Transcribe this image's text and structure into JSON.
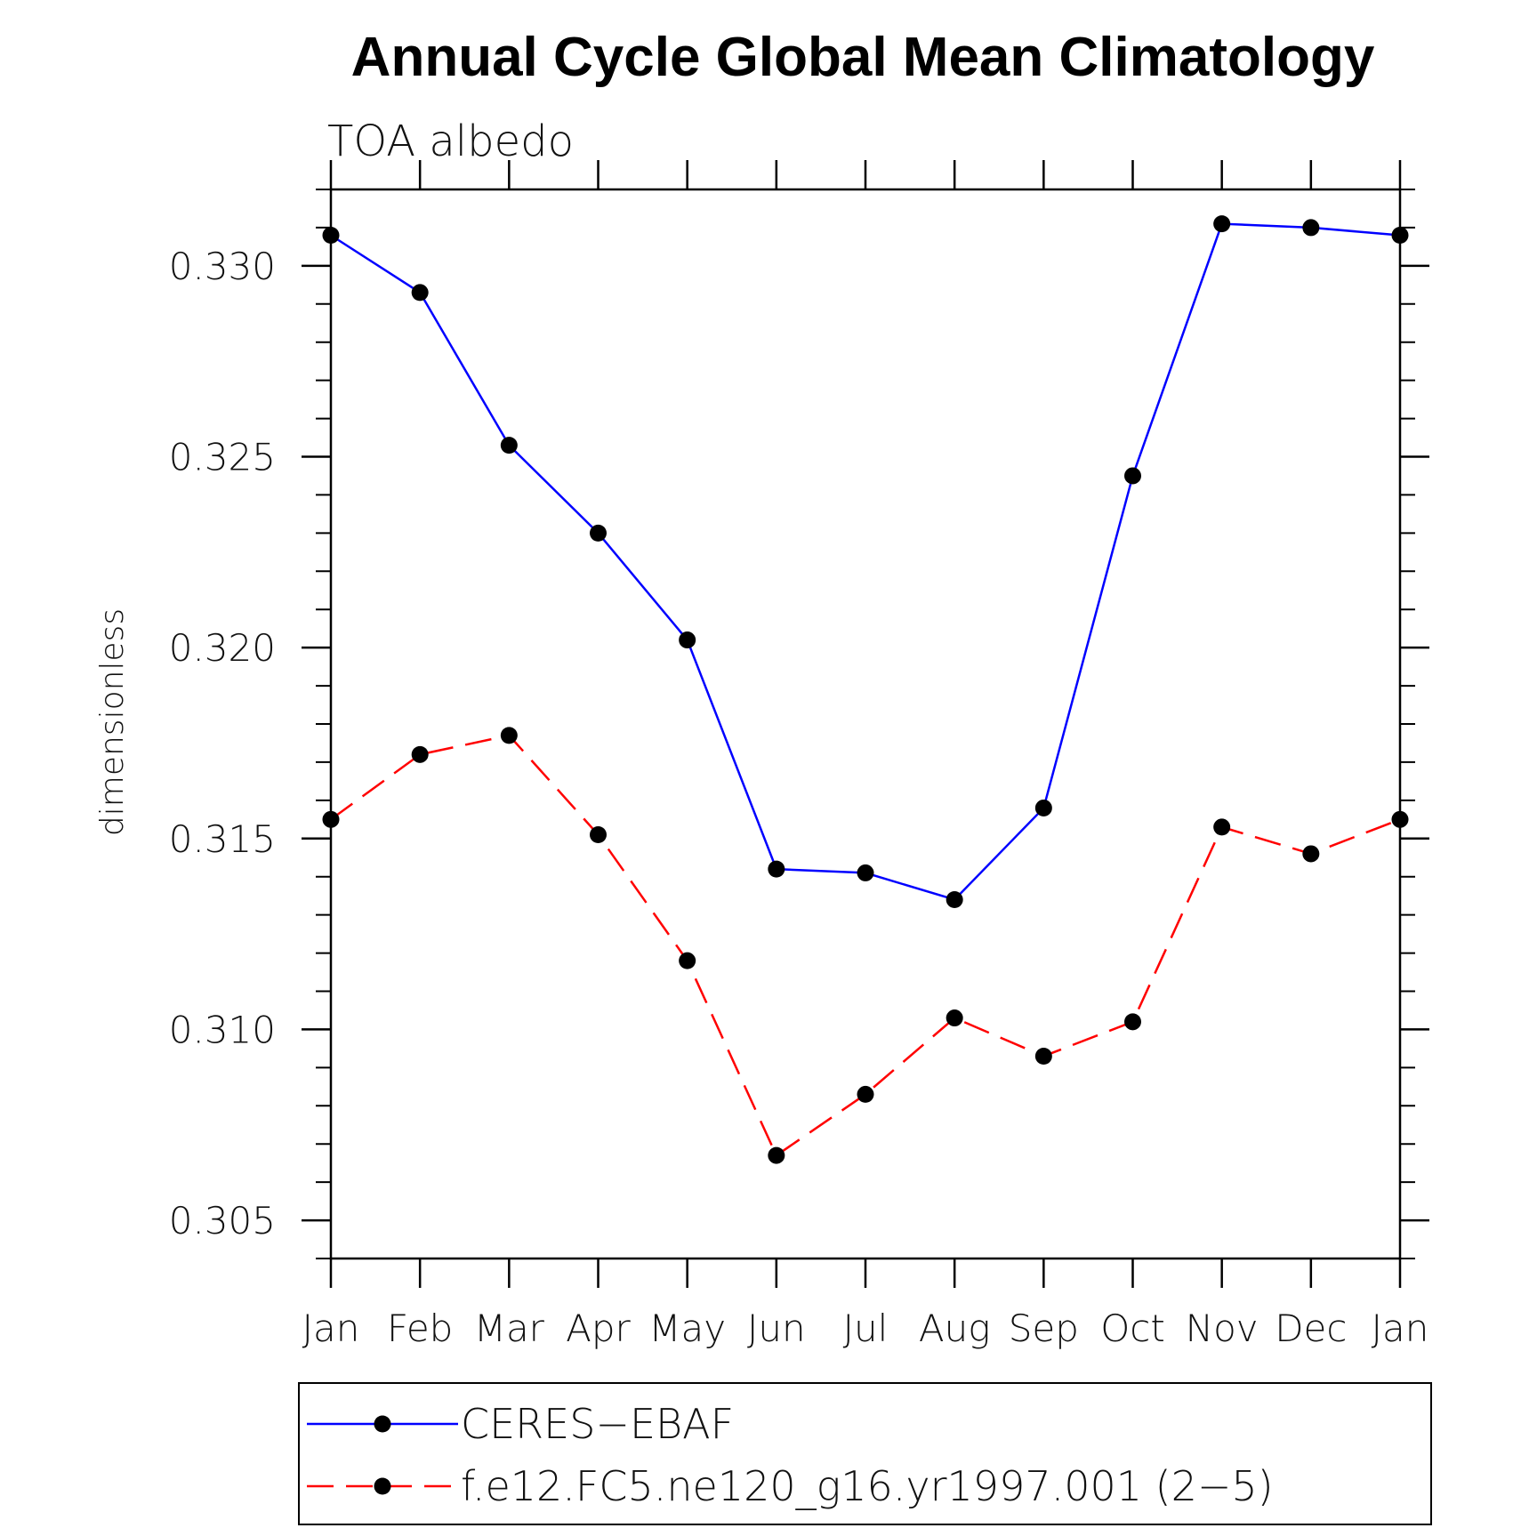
{
  "chart_data": {
    "type": "line",
    "title": "Annual Cycle Global Mean Climatology",
    "subtitle": "TOA albedo",
    "xlabel": "",
    "ylabel": "dimensionless",
    "categories": [
      "Jan",
      "Feb",
      "Mar",
      "Apr",
      "May",
      "Jun",
      "Jul",
      "Aug",
      "Sep",
      "Oct",
      "Nov",
      "Dec",
      "Jan"
    ],
    "ylim": [
      0.304,
      0.332
    ],
    "yticks": [
      "0.305",
      "0.310",
      "0.315",
      "0.320",
      "0.325",
      "0.330"
    ],
    "grid": false,
    "legend_position": "bottom",
    "series": [
      {
        "name": "CERES−EBAF",
        "color": "#0000ff",
        "line_style": "solid",
        "marker": "filled-circle",
        "values": [
          0.3308,
          0.3293,
          0.3253,
          0.323,
          0.3202,
          0.3142,
          0.3141,
          0.3134,
          0.3158,
          0.3245,
          0.3311,
          0.331,
          0.3308
        ]
      },
      {
        "name": "f.e12.FC5.ne120_g16.yr1997.001 (2−5)",
        "color": "#ff0000",
        "line_style": "dashed",
        "marker": "filled-circle",
        "values": [
          0.3155,
          0.3172,
          0.3177,
          0.3151,
          0.3118,
          0.3067,
          0.3083,
          0.3103,
          0.3093,
          0.3102,
          0.3153,
          0.3146,
          0.3155
        ]
      }
    ]
  }
}
